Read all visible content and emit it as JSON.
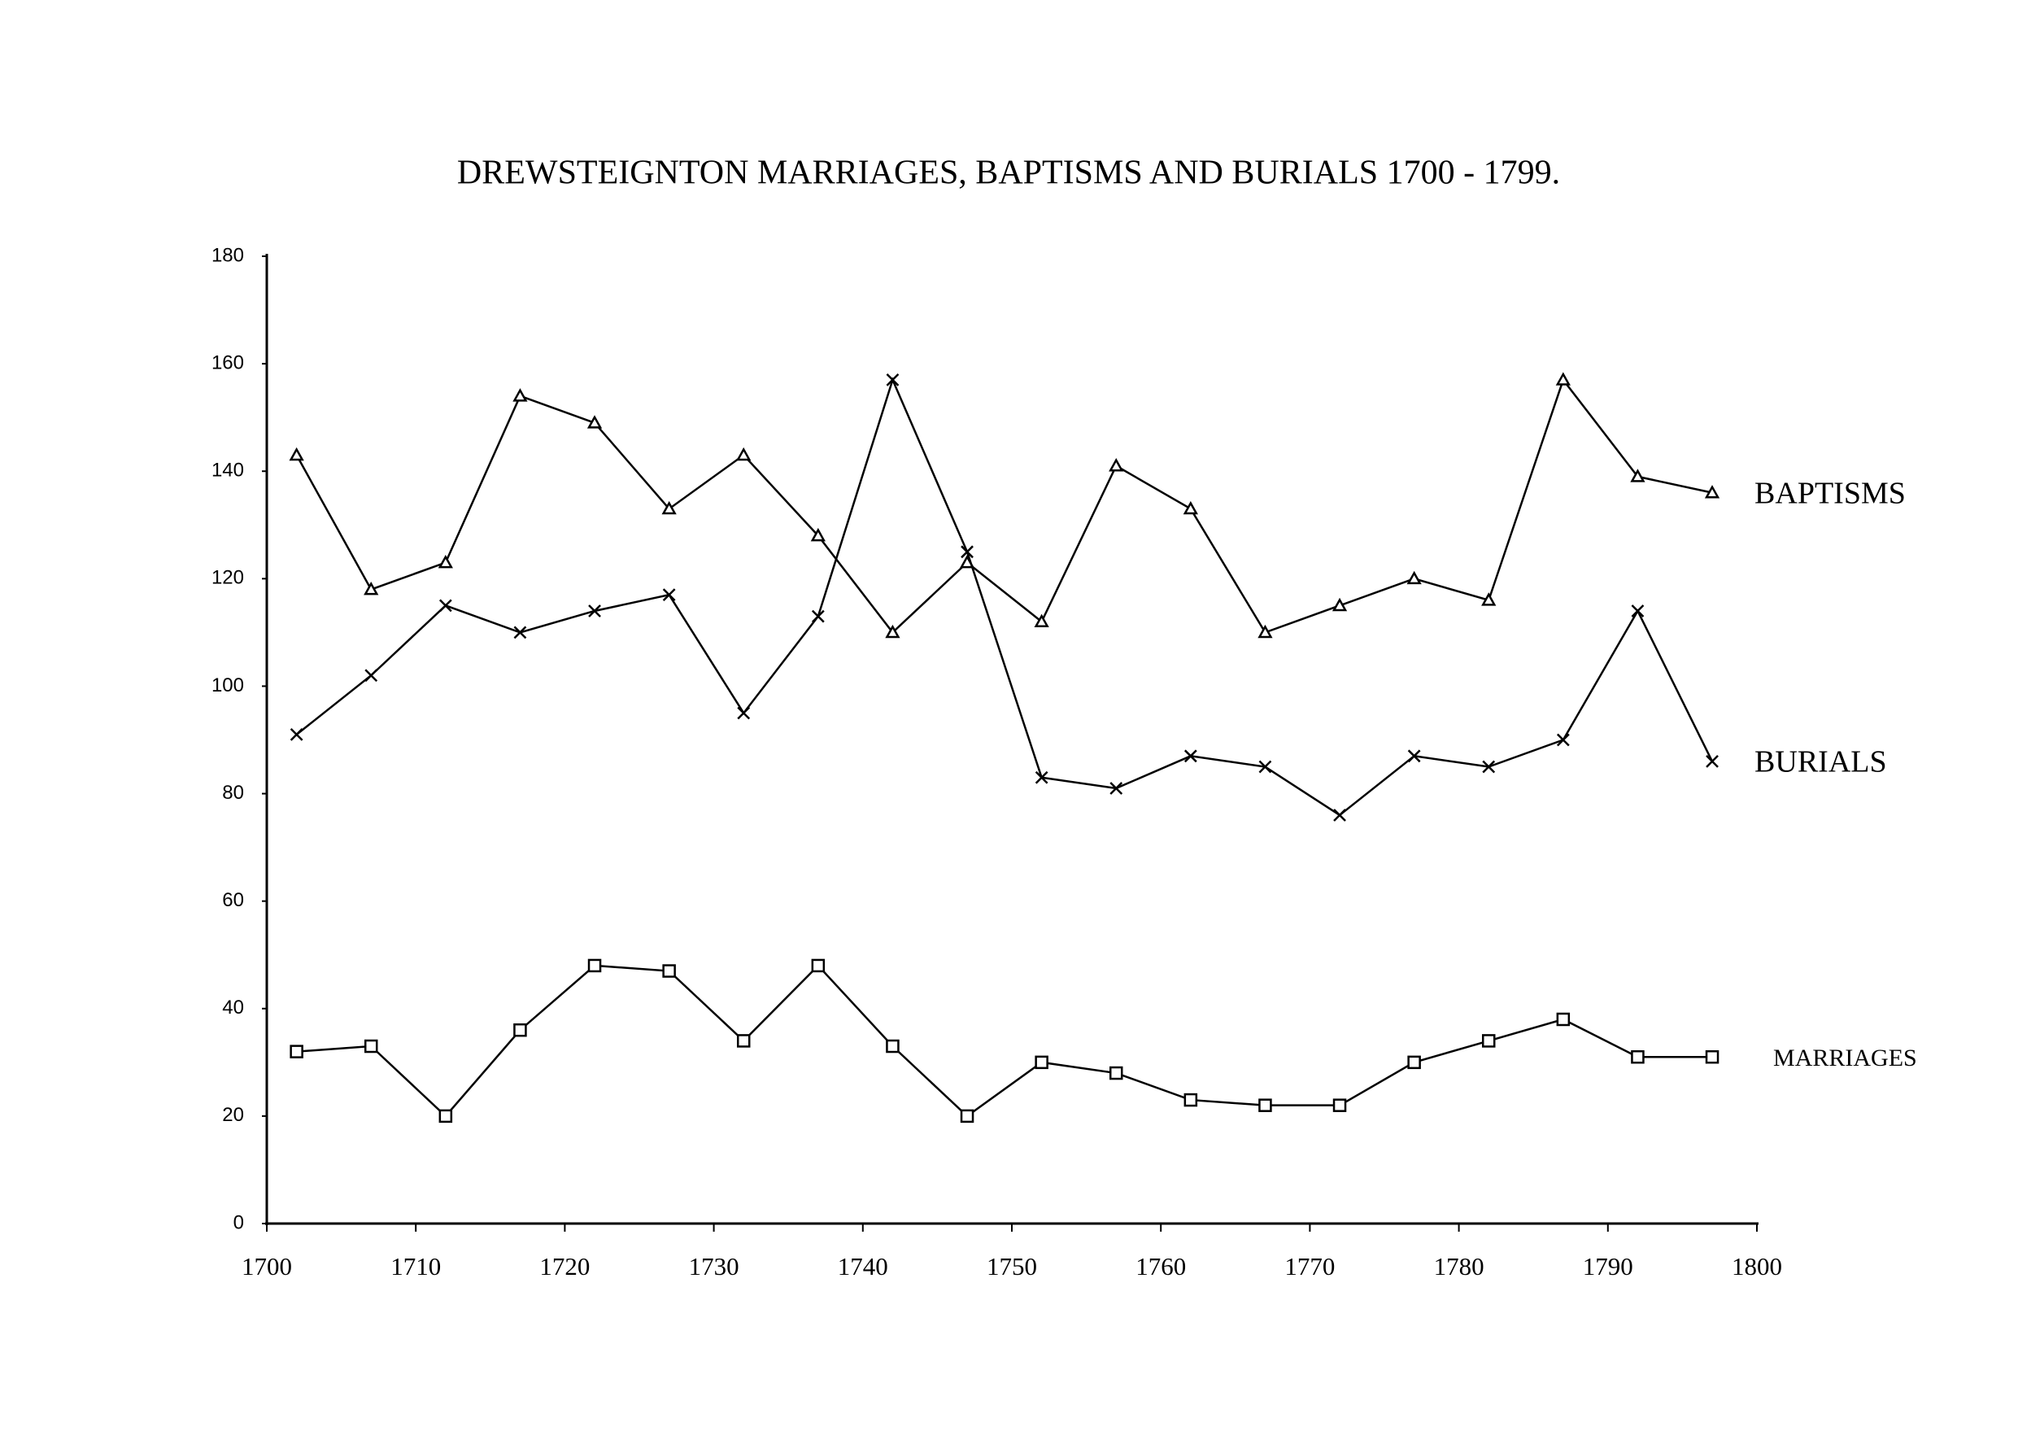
{
  "chart_data": {
    "type": "line",
    "title": "DREWSTEIGNTON MARRIAGES, BAPTISMS AND BURIALS  1700 - 1799.",
    "x": [
      1702,
      1707,
      1712,
      1717,
      1722,
      1727,
      1732,
      1737,
      1742,
      1747,
      1752,
      1757,
      1762,
      1767,
      1772,
      1777,
      1782,
      1787,
      1792,
      1797
    ],
    "series": [
      {
        "name": "BAPTISMS",
        "color": "#000000",
        "marker": "triangle",
        "values": [
          143,
          118,
          123,
          154,
          149,
          133,
          143,
          128,
          110,
          123,
          112,
          141,
          133,
          110,
          115,
          120,
          116,
          157,
          139,
          136
        ]
      },
      {
        "name": "BURIALS",
        "color": "#000000",
        "marker": "cross",
        "values": [
          91,
          102,
          115,
          110,
          114,
          117,
          95,
          113,
          157,
          125,
          83,
          81,
          87,
          85,
          76,
          87,
          85,
          90,
          114,
          86
        ]
      },
      {
        "name": "MARRIAGES",
        "color": "#000000",
        "marker": "square",
        "values": [
          32,
          33,
          20,
          36,
          48,
          47,
          34,
          48,
          33,
          20,
          30,
          28,
          23,
          22,
          22,
          30,
          34,
          38,
          31,
          31
        ]
      }
    ],
    "xlim": [
      1700,
      1800
    ],
    "xticks": [
      1700,
      1710,
      1720,
      1730,
      1740,
      1750,
      1760,
      1770,
      1780,
      1790,
      1800
    ],
    "ylim": [
      0,
      180
    ],
    "yticks": [
      0,
      20,
      40,
      60,
      80,
      100,
      120,
      140,
      160,
      180
    ],
    "grid": false
  }
}
